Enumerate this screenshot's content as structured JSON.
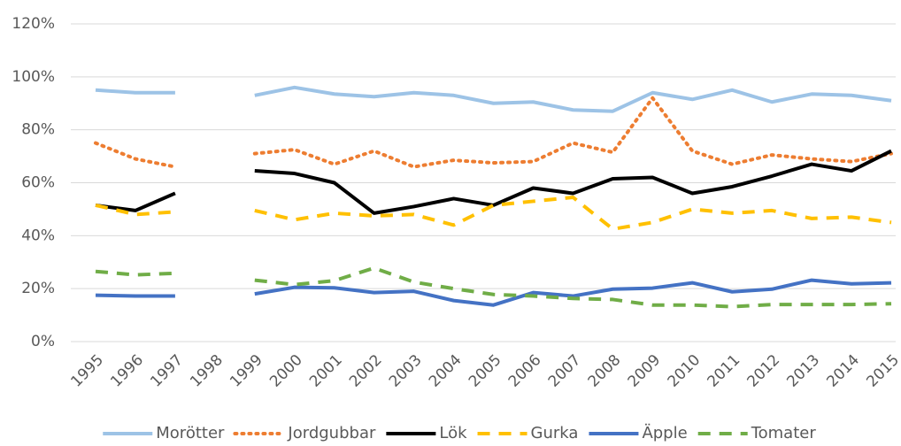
{
  "chart_data": {
    "type": "line",
    "categories": [
      "1995",
      "1996",
      "1997",
      "1998",
      "1999",
      "2000",
      "2001",
      "2002",
      "2003",
      "2004",
      "2005",
      "2006",
      "2007",
      "2008",
      "2009",
      "2010",
      "2011",
      "2012",
      "2013",
      "2014",
      "2015"
    ],
    "ylim": [
      0,
      120
    ],
    "yticks": [
      {
        "value": 0,
        "label": "0%"
      },
      {
        "value": 20,
        "label": "20%"
      },
      {
        "value": 40,
        "label": "40%"
      },
      {
        "value": 60,
        "label": "60%"
      },
      {
        "value": 80,
        "label": "80%"
      },
      {
        "value": 100,
        "label": "100%"
      },
      {
        "value": 120,
        "label": "120%"
      }
    ],
    "grid": true,
    "legend": "bottom",
    "series": [
      {
        "name": "Morötter",
        "color": "#9dc3e6",
        "style": "solid",
        "values": [
          95,
          94,
          94,
          null,
          93,
          96,
          93.5,
          92.5,
          94,
          93,
          90,
          90.5,
          87.5,
          87,
          94,
          91.5,
          95,
          90.5,
          93.5,
          93,
          91
        ]
      },
      {
        "name": "Jordgubbar",
        "color": "#ed7d31",
        "style": "dotted",
        "values": [
          75,
          69,
          66,
          null,
          71,
          72.5,
          67,
          72,
          66,
          68.5,
          67.5,
          68,
          75,
          71.5,
          92,
          72,
          67,
          70.5,
          69,
          68,
          71
        ]
      },
      {
        "name": "Lök",
        "color": "#000000",
        "style": "solid",
        "values": [
          51.5,
          49.5,
          56,
          null,
          64.5,
          63.5,
          60,
          48.5,
          51,
          54,
          51.5,
          58,
          56,
          61.5,
          62,
          56,
          58.5,
          62.5,
          67,
          64.5,
          72
        ]
      },
      {
        "name": "Gurka",
        "color": "#ffc000",
        "style": "dashed",
        "values": [
          51.5,
          48,
          49,
          null,
          49.5,
          46,
          48.5,
          47.5,
          48,
          44,
          51.5,
          53,
          54.5,
          42.5,
          45,
          50,
          48.5,
          49.5,
          46.5,
          47,
          45
        ]
      },
      {
        "name": "Äpple",
        "color": "#4472c4",
        "style": "solid",
        "values": [
          17.5,
          17.2,
          17.2,
          null,
          18,
          20.5,
          20.3,
          18.5,
          19,
          15.5,
          13.8,
          18.5,
          17.2,
          19.8,
          20.2,
          22.2,
          18.8,
          19.8,
          23.2,
          21.8,
          22.2
        ]
      },
      {
        "name": "Tomater",
        "color": "#70ad47",
        "style": "dashed",
        "values": [
          26.5,
          25.2,
          25.8,
          null,
          23.2,
          21.5,
          23,
          27.8,
          22.5,
          20,
          17.8,
          17.2,
          16.3,
          15.9,
          13.8,
          13.8,
          13.2,
          14,
          14,
          14,
          14.3
        ]
      }
    ]
  }
}
